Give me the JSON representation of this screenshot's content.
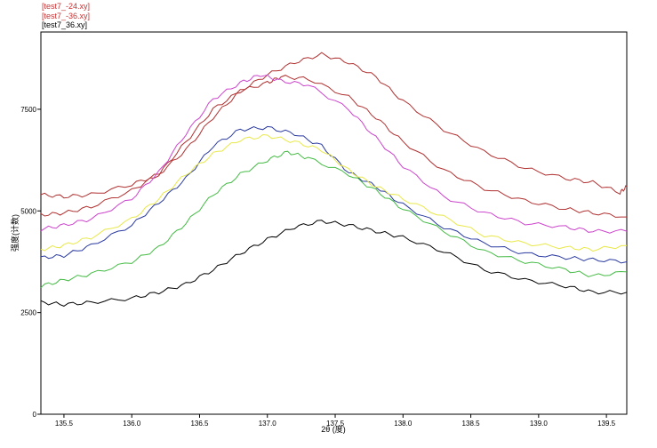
{
  "chart_data": {
    "type": "line",
    "title": "",
    "xlabel": "2θ (度)",
    "ylabel": "强度(计数)",
    "xlim": [
      135.33,
      139.65
    ],
    "ylim": [
      0,
      9400
    ],
    "x_ticks": [
      "135.5",
      "136.0",
      "136.5",
      "137.0",
      "137.5",
      "138.0",
      "138.5",
      "139.0",
      "139.5"
    ],
    "x_tick_values": [
      135.5,
      136.0,
      136.5,
      137.0,
      137.5,
      138.0,
      138.5,
      139.0,
      139.5
    ],
    "y_ticks": [
      "0",
      "2500",
      "5000",
      "7500"
    ],
    "y_tick_values": [
      0,
      2500,
      5000,
      7500
    ],
    "legend_position": "top-left, above plot",
    "legend": [
      {
        "label": "[test7_-24.xy]",
        "color": "#c83232"
      },
      {
        "label": "[test7_-36.xy]",
        "color": "#c83232"
      },
      {
        "label": "[test7_36.xy]",
        "color": "#000000"
      }
    ],
    "series": [
      {
        "color": "#b03030",
        "x": [
          135.33,
          135.5,
          135.7,
          136.0,
          136.2,
          136.4,
          136.6,
          136.8,
          137.0,
          137.2,
          137.4,
          137.6,
          137.8,
          138.0,
          138.3,
          138.6,
          138.9,
          139.2,
          139.4,
          139.6,
          139.65
        ],
        "y": [
          5400,
          5350,
          5400,
          5650,
          5900,
          6500,
          7300,
          7950,
          8350,
          8650,
          8850,
          8650,
          8300,
          7700,
          7000,
          6450,
          6050,
          5800,
          5700,
          5450,
          5600
        ]
      },
      {
        "color": "#b03030",
        "x": [
          135.33,
          135.5,
          135.7,
          136.0,
          136.2,
          136.4,
          136.6,
          136.8,
          137.0,
          137.1,
          137.3,
          137.6,
          137.8,
          138.0,
          138.3,
          138.6,
          138.9,
          139.2,
          139.4,
          139.65
        ],
        "y": [
          4900,
          4950,
          5100,
          5500,
          5900,
          6700,
          7500,
          7950,
          8150,
          8300,
          8250,
          7800,
          7300,
          6700,
          6000,
          5550,
          5250,
          5050,
          4950,
          4850
        ]
      },
      {
        "color": "#cc44cc",
        "x": [
          135.33,
          135.5,
          135.7,
          136.0,
          136.2,
          136.4,
          136.6,
          136.8,
          136.95,
          137.1,
          137.3,
          137.6,
          137.8,
          138.0,
          138.3,
          138.6,
          138.9,
          139.2,
          139.4,
          139.65
        ],
        "y": [
          4550,
          4650,
          4800,
          5300,
          5950,
          6900,
          7750,
          8150,
          8350,
          8200,
          8100,
          7500,
          6800,
          6100,
          5350,
          4950,
          4700,
          4600,
          4500,
          4500
        ]
      },
      {
        "color": "#2a3aa0",
        "x": [
          135.33,
          135.5,
          135.7,
          136.0,
          136.2,
          136.4,
          136.6,
          136.8,
          137.0,
          137.2,
          137.4,
          137.6,
          137.8,
          138.0,
          138.3,
          138.6,
          138.9,
          139.2,
          139.4,
          139.65
        ],
        "y": [
          3850,
          3900,
          4150,
          4650,
          5200,
          5800,
          6600,
          7000,
          7050,
          6900,
          6600,
          5950,
          5600,
          5150,
          4600,
          4200,
          3950,
          3850,
          3800,
          3750
        ]
      },
      {
        "color": "#e8e84a",
        "x": [
          135.33,
          135.5,
          135.7,
          136.0,
          136.2,
          136.4,
          136.6,
          136.8,
          137.0,
          137.2,
          137.4,
          137.6,
          137.8,
          138.0,
          138.3,
          138.6,
          138.9,
          139.2,
          139.4,
          139.65
        ],
        "y": [
          4050,
          4150,
          4350,
          4800,
          5300,
          5900,
          6400,
          6750,
          6850,
          6700,
          6500,
          6000,
          5600,
          5300,
          4850,
          4400,
          4200,
          4100,
          4050,
          4150
        ]
      },
      {
        "color": "#44bb44",
        "x": [
          135.33,
          135.5,
          135.7,
          136.0,
          136.2,
          136.4,
          136.6,
          136.8,
          137.0,
          137.15,
          137.3,
          137.6,
          137.8,
          138.0,
          138.3,
          138.6,
          138.9,
          139.2,
          139.4,
          139.65
        ],
        "y": [
          3150,
          3300,
          3450,
          3750,
          4100,
          4700,
          5400,
          5900,
          6250,
          6450,
          6300,
          5900,
          5500,
          5050,
          4500,
          4000,
          3750,
          3550,
          3400,
          3500
        ]
      },
      {
        "color": "#000000",
        "x": [
          135.33,
          135.5,
          135.7,
          136.0,
          136.2,
          136.4,
          136.6,
          136.8,
          137.0,
          137.2,
          137.4,
          137.6,
          137.8,
          138.0,
          138.3,
          138.6,
          138.9,
          139.2,
          139.4,
          139.65
        ],
        "y": [
          2750,
          2700,
          2750,
          2850,
          3000,
          3200,
          3550,
          3950,
          4300,
          4600,
          4750,
          4650,
          4500,
          4350,
          4000,
          3550,
          3300,
          3150,
          3000,
          3000
        ]
      }
    ]
  }
}
